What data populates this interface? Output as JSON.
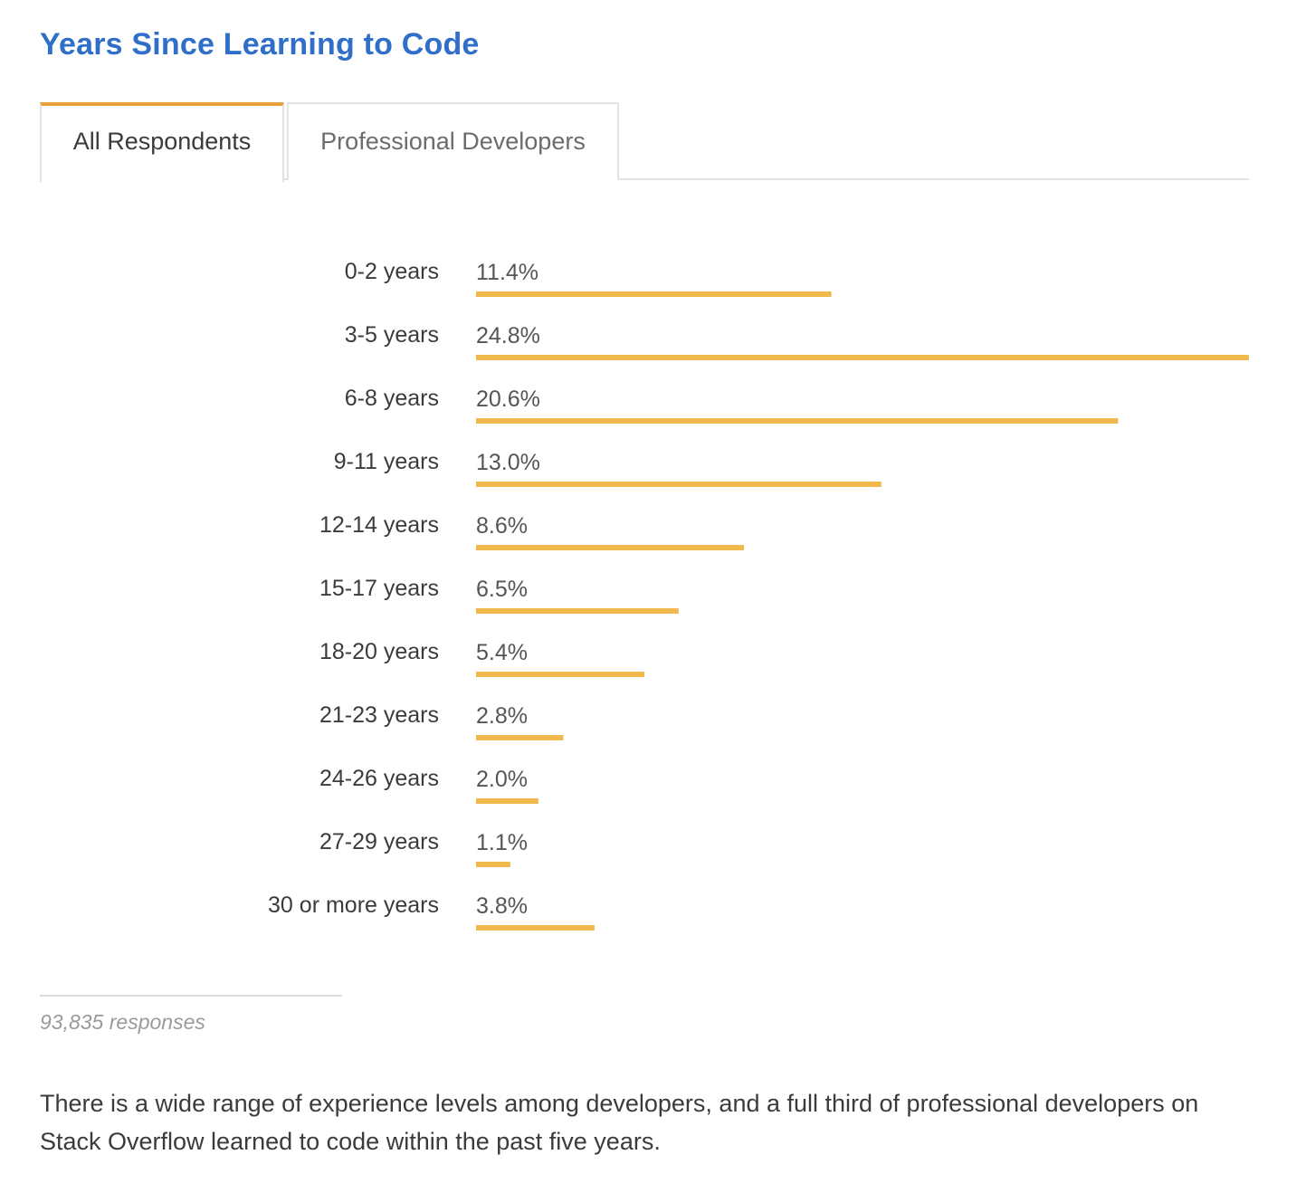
{
  "header": {
    "title": "Years Since Learning to Code"
  },
  "tabs": [
    {
      "label": "All Respondents",
      "active": true
    },
    {
      "label": "Professional Developers",
      "active": false
    }
  ],
  "colors": {
    "bar": "#f0b94e",
    "title": "#2f6fc9",
    "tab_accent": "#e9a23b"
  },
  "chart_data": {
    "type": "bar",
    "orientation": "horizontal",
    "title": "Years Since Learning to Code",
    "categories": [
      "0-2 years",
      "3-5 years",
      "6-8 years",
      "9-11 years",
      "12-14 years",
      "15-17 years",
      "18-20 years",
      "21-23 years",
      "24-26 years",
      "27-29 years",
      "30 or more years"
    ],
    "values": [
      11.4,
      24.8,
      20.6,
      13.0,
      8.6,
      6.5,
      5.4,
      2.8,
      2.0,
      1.1,
      3.8
    ],
    "value_labels": [
      "11.4%",
      "24.8%",
      "20.6%",
      "13.0%",
      "8.6%",
      "6.5%",
      "5.4%",
      "2.8%",
      "2.0%",
      "1.1%",
      "3.8%"
    ],
    "unit": "%",
    "xlim": [
      0,
      24.8
    ]
  },
  "footer": {
    "responses": "93,835 responses",
    "description": "There is a wide range of experience levels among developers, and a full third of professional developers on Stack Overflow learned to code within the past five years."
  }
}
